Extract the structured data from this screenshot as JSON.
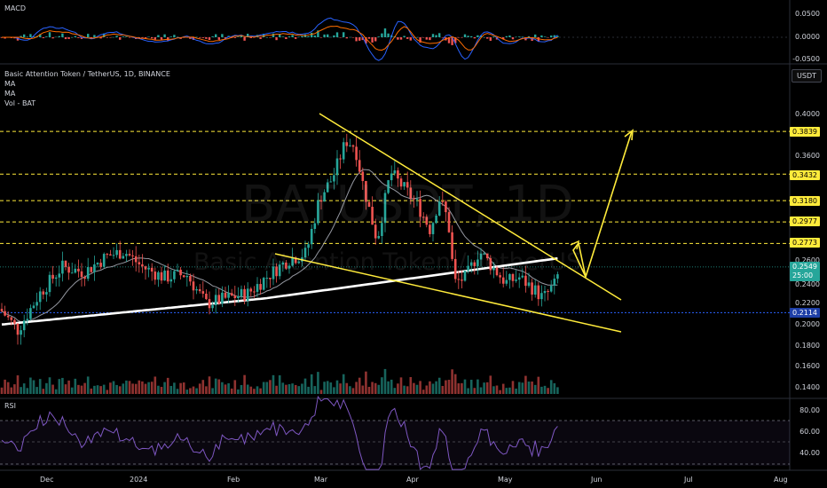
{
  "chart_title": "Basic Attention Token / TetherUS, 1D, BINANCE",
  "indicators": [
    "MA",
    "MA",
    "Vol - BAT"
  ],
  "watermark": {
    "symbol": "BATUSDT, 1D",
    "name": "Basic Attention Token / TetherUS"
  },
  "currency_button": "USDT",
  "macd": {
    "title": "MACD",
    "axis": [
      "0.0500",
      "0.0000",
      "-0.0500"
    ]
  },
  "rsi": {
    "title": "RSI",
    "axis": [
      "80.00",
      "60.00",
      "40.00"
    ]
  },
  "price_axis": [
    "0.4000",
    "0.3600",
    "0.2600",
    "0.2400",
    "0.2200",
    "0.2000",
    "0.1800",
    "0.1600",
    "0.1400"
  ],
  "level_tags": [
    "0.3839",
    "0.3432",
    "0.3180",
    "0.2977",
    "0.2773"
  ],
  "support_tag": "0.2114",
  "last_price": "0.2549",
  "countdown": "25:00",
  "x_axis": [
    "Dec",
    "2024",
    "Feb",
    "Mar",
    "Apr",
    "May",
    "Jun",
    "Jul",
    "Aug"
  ],
  "colors": {
    "up": "#26a69a",
    "down": "#ef5350",
    "levels": "#ffeb3b",
    "support": "#2962ff",
    "ma_long": "#ffffff",
    "ma_short": "#9598a1",
    "rsi": "#7e57c2"
  },
  "chart_data": {
    "type": "candlestick",
    "interval": "1D",
    "price_range": [
      0.13,
      0.43
    ],
    "levels": [
      0.3839,
      0.3432,
      0.318,
      0.2977,
      0.2773
    ],
    "support": 0.2114,
    "last": 0.2549,
    "key_points": [
      {
        "date": "2023-11-23",
        "close": 0.195
      },
      {
        "date": "2024-01-10",
        "high": 0.3
      },
      {
        "date": "2024-03-04",
        "high": 0.39
      },
      {
        "date": "2024-04-13",
        "low": 0.21
      },
      {
        "date": "2024-05-22",
        "close": 0.2549
      }
    ]
  }
}
